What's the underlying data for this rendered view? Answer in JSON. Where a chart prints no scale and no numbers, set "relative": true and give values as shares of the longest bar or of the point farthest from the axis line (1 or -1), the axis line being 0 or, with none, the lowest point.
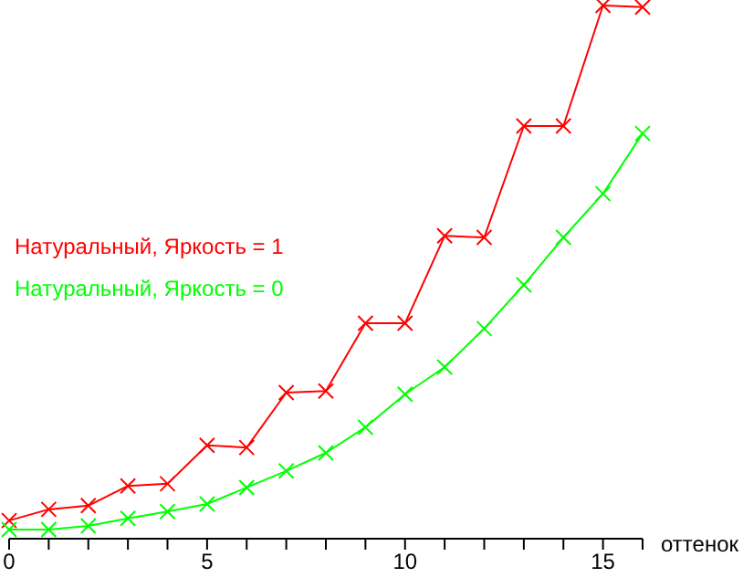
{
  "chart_data": {
    "type": "line",
    "relative": true,
    "xlabel": "оттенок",
    "x": [
      0,
      1,
      2,
      3,
      4,
      5,
      6,
      7,
      8,
      9,
      10,
      11,
      12,
      13,
      14,
      15,
      16
    ],
    "xlim": [
      0,
      16
    ],
    "xticks": [
      0,
      {
        "value": 1,
        "label": null
      },
      {
        "value": 2,
        "label": null
      },
      {
        "value": 3,
        "label": null
      },
      {
        "value": 4,
        "label": null
      },
      5,
      {
        "value": 6,
        "label": null
      },
      {
        "value": 7,
        "label": null
      },
      {
        "value": 8,
        "label": null
      },
      {
        "value": 9,
        "label": null
      },
      10,
      {
        "value": 11,
        "label": null
      },
      {
        "value": 12,
        "label": null
      },
      {
        "value": 13,
        "label": null
      },
      {
        "value": 14,
        "label": null
      },
      15,
      {
        "value": 16,
        "label": null
      }
    ],
    "marker": "cross",
    "legend": "left",
    "grid": false,
    "series": [
      {
        "name": "Натуральный, Яркость = 1",
        "color": "#ff0000",
        "values": [
          0.034,
          0.055,
          0.062,
          0.099,
          0.103,
          0.175,
          0.171,
          0.274,
          0.277,
          0.404,
          0.404,
          0.568,
          0.565,
          0.774,
          0.774,
          1,
          0.997
        ]
      },
      {
        "name": "Натуральный, Яркость = 0",
        "color": "#00ff00",
        "values": [
          0.017,
          0.017,
          0.024,
          0.038,
          0.051,
          0.065,
          0.096,
          0.127,
          0.161,
          0.209,
          0.271,
          0.322,
          0.394,
          0.476,
          0.565,
          0.647,
          0.76
        ]
      }
    ]
  }
}
